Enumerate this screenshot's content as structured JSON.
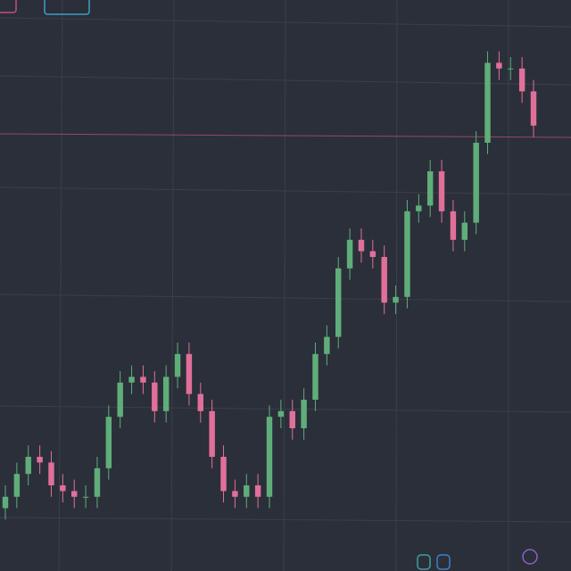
{
  "chart_data": {
    "type": "candlestick",
    "open": [
      11,
      13,
      17,
      20,
      19,
      15,
      14,
      13,
      13,
      18,
      27,
      33,
      34,
      33,
      28,
      34,
      38,
      31,
      28,
      20,
      14,
      13,
      15,
      13,
      27,
      28,
      25,
      30,
      38,
      41,
      53,
      58,
      56,
      55,
      47,
      48,
      63,
      64,
      70,
      63,
      58,
      61,
      75,
      89,
      88,
      88,
      84
    ],
    "close": [
      13,
      17,
      20,
      19,
      15,
      14,
      13,
      13,
      18,
      27,
      33,
      34,
      33,
      28,
      34,
      38,
      31,
      28,
      20,
      14,
      13,
      15,
      13,
      27,
      28,
      25,
      30,
      38,
      41,
      53,
      58,
      56,
      55,
      47,
      48,
      63,
      64,
      70,
      63,
      58,
      61,
      75,
      89,
      88,
      88,
      84,
      78
    ],
    "high": [
      15,
      19,
      22,
      22,
      21,
      17,
      16,
      15,
      20,
      29,
      35,
      36,
      36,
      35,
      36,
      40,
      40,
      33,
      30,
      22,
      16,
      17,
      17,
      29,
      30,
      30,
      32,
      40,
      43,
      55,
      60,
      60,
      58,
      57,
      50,
      65,
      66,
      72,
      72,
      65,
      63,
      77,
      91,
      91,
      90,
      90,
      86
    ],
    "low": [
      9,
      11,
      15,
      17,
      13,
      12,
      11,
      11,
      11,
      16,
      25,
      31,
      31,
      26,
      26,
      32,
      29,
      26,
      18,
      12,
      11,
      11,
      11,
      11,
      25,
      23,
      23,
      28,
      36,
      39,
      51,
      54,
      53,
      45,
      45,
      46,
      61,
      62,
      61,
      56,
      56,
      59,
      73,
      86,
      86,
      82,
      76
    ],
    "up_color": "#5fae7a",
    "down_color": "#e0709a",
    "ylim": [
      0,
      100
    ]
  }
}
